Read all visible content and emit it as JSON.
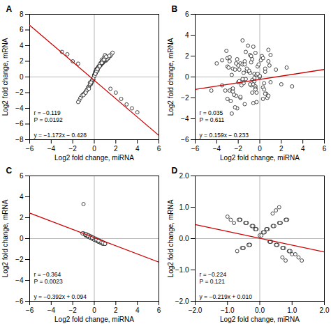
{
  "chart_data": [
    {
      "type": "scatter",
      "title": "A",
      "x_label": "Log2 fold change, miRNA",
      "y_label": "Log2 fold change, mRNA",
      "annotation": "r = −0.119\nP = 0.0192\n\ny = −1.172x − 0.428",
      "color": "black",
      "marker": "hollow",
      "xlim": [
        -6,
        6
      ],
      "ylim": [
        -8,
        8
      ],
      "xticks": [
        -6,
        -4,
        -2,
        0,
        2,
        4,
        6
      ],
      "yticks": [
        -8,
        -6,
        -4,
        -2,
        0,
        2,
        4,
        6,
        8
      ],
      "rules": {
        "x": [
          0
        ],
        "y": [
          0
        ]
      },
      "line": {
        "x": [
          -6,
          6
        ],
        "y": [
          6.604,
          -7.46
        ],
        "color": "#cc0000"
      },
      "x": [
        0.1,
        0.3,
        -0.1,
        0.2,
        0.0,
        0.4,
        -0.2,
        0.5,
        0.1,
        -0.3,
        0.6,
        0.8,
        -0.4,
        0.7,
        0.2,
        -0.5,
        0.9,
        1.0,
        -0.6,
        0.3,
        0.0,
        0.1,
        -0.2,
        0.4,
        0.6,
        -0.7,
        0.8,
        1.1,
        -0.8,
        0.5,
        0.2,
        -0.1,
        0.3,
        0.7,
        -0.3,
        0.9,
        1.2,
        -0.9,
        0.4,
        0.0,
        0.1,
        0.2,
        -0.4,
        0.5,
        0.8,
        -1.0,
        1.0,
        1.3,
        -1.1,
        0.6,
        -0.5,
        0.3,
        -0.2,
        0.7,
        0.9,
        -0.6,
        1.1,
        1.4,
        -1.2,
        0.4,
        0.0,
        0.1,
        0.3,
        -0.3,
        0.6,
        0.8,
        -0.8,
        1.2,
        1.5,
        -1.3,
        0.5,
        -0.7,
        0.2,
        0.4,
        0.7,
        0.9,
        -0.9,
        1.3,
        1.6,
        -1.4,
        0.6,
        0.1,
        -0.1,
        0.3,
        0.5,
        0.8,
        -1.0,
        1.4,
        1.7,
        -1.5,
        2.0,
        3.0,
        4.0,
        -2.0,
        -3.0,
        1.5,
        2.5,
        -1.5,
        -2.5,
        3.5,
        0.0,
        0.2,
        -0.2,
        0.4,
        0.6,
        0.8,
        -0.4,
        1.0,
        -0.6,
        0.5,
        0.1,
        -0.1,
        0.3,
        0.7,
        -0.3,
        0.9,
        1.1,
        -0.8,
        0.5,
        -0.5
      ],
      "values": [
        0.5,
        0.8,
        -0.3,
        1.0,
        0.2,
        1.2,
        -0.5,
        1.5,
        0.7,
        -0.8,
        1.8,
        2.0,
        -1.0,
        2.2,
        0.9,
        -1.2,
        2.5,
        2.8,
        -1.5,
        1.1,
        0.3,
        0.6,
        -0.6,
        1.3,
        1.6,
        -1.7,
        1.9,
        2.1,
        -1.9,
        1.4,
        0.7,
        -0.4,
        1.0,
        1.7,
        -0.9,
        2.0,
        2.3,
        -2.1,
        1.2,
        0.1,
        0.4,
        0.7,
        -0.7,
        1.4,
        1.8,
        -2.2,
        2.1,
        2.4,
        -2.3,
        1.5,
        -1.3,
        1.1,
        -0.5,
        1.7,
        2.0,
        -1.4,
        2.2,
        2.6,
        -2.5,
        1.3,
        0.2,
        0.5,
        1.0,
        -0.8,
        1.6,
        1.9,
        -1.9,
        2.3,
        2.7,
        -2.7,
        1.5,
        -1.7,
        0.9,
        1.3,
        1.8,
        2.1,
        -2.1,
        2.5,
        2.9,
        -3.0,
        1.6,
        0.4,
        -0.3,
        1.1,
        1.5,
        2.0,
        -2.3,
        2.7,
        3.1,
        -3.2,
        -2.0,
        -3.5,
        -4.5,
        2.0,
        3.2,
        -1.5,
        -2.8,
        1.7,
        2.9,
        -4.0,
        0.1,
        0.7,
        -0.4,
        1.2,
        1.7,
        2.1,
        -0.9,
        2.4,
        -1.4,
        1.6,
        0.4,
        -0.2,
        1.0,
        1.8,
        -0.7,
        2.2,
        2.6,
        -2.0,
        1.4,
        -1.5
      ]
    },
    {
      "type": "scatter",
      "title": "B",
      "x_label": "Log2 fold change, miRNA",
      "y_label": "Log2 fold change, mRNA",
      "annotation": "r = 0.035\nP = 0.611\n\ny = 0.159x − 0.233",
      "color": "black",
      "marker": "hollow",
      "xlim": [
        -6,
        6
      ],
      "ylim": [
        -6,
        6
      ],
      "xticks": [
        -6,
        -4,
        -2,
        0,
        2,
        4,
        6
      ],
      "yticks": [
        -6,
        -4,
        -2,
        0,
        2,
        4,
        6
      ],
      "rules": {
        "x": [
          0
        ],
        "y": [
          0
        ]
      },
      "line": {
        "x": [
          -6,
          6
        ],
        "y": [
          -1.187,
          0.721
        ],
        "color": "#cc0000"
      },
      "x": [
        -1.0,
        -2.0,
        -3.0,
        -0.5,
        -1.5,
        -2.5,
        -0.8,
        -1.8,
        -2.8,
        -0.3,
        -1.3,
        -2.3,
        -0.6,
        -1.6,
        -2.6,
        -0.9,
        -1.9,
        -2.9,
        -0.4,
        -1.4,
        0.0,
        0.5,
        1.0,
        -0.2,
        0.3,
        0.8,
        -0.7,
        0.2,
        0.7,
        -1.2,
        0.4,
        0.9,
        -0.4,
        0.1,
        0.6,
        -0.9,
        0.3,
        0.8,
        -1.4,
        0.5,
        -3.5,
        -4.0,
        -4.5,
        -3.0,
        -2.2,
        1.5,
        2.0,
        -0.1,
        0.4,
        -2.1,
        -1.1,
        -2.1,
        -3.1,
        -0.6,
        -1.6,
        -2.6,
        -0.8,
        -1.8,
        -2.8,
        -0.3,
        0.0,
        -0.5,
        -1.0,
        -1.5,
        -2.0,
        -2.5,
        -3.5,
        0.5,
        1.0,
        -3.0,
        -0.2,
        -0.7,
        -1.2,
        -1.7,
        -2.2,
        -3.2,
        0.3,
        0.8,
        -0.4,
        -2.7,
        2.5,
        3.0,
        -0.5,
        -1.5,
        -2.5,
        -0.8,
        -1.8,
        -2.8,
        -0.3,
        -1.3,
        -2.3,
        -0.6,
        -1.6,
        -2.6,
        -0.9,
        -1.9,
        -0.4,
        -1.4,
        -2.4,
        -0.7
      ],
      "values": [
        0.5,
        -0.5,
        1.0,
        0.3,
        -0.3,
        0.8,
        -0.8,
        1.3,
        -1.3,
        0.2,
        -0.2,
        0.7,
        -0.7,
        1.2,
        -1.2,
        0.4,
        -0.4,
        0.9,
        -0.9,
        1.5,
        0.0,
        0.5,
        -0.5,
        1.0,
        -1.0,
        1.5,
        -1.5,
        2.0,
        -2.0,
        0.6,
        -0.6,
        1.1,
        -1.1,
        1.6,
        -1.6,
        2.1,
        -2.1,
        2.6,
        -2.6,
        0.8,
        -0.8,
        1.3,
        -1.3,
        1.8,
        -1.8,
        0.7,
        -0.7,
        1.2,
        -1.2,
        1.7,
        3.0,
        -3.0,
        2.5,
        -2.5,
        3.5,
        -3.5,
        2.0,
        -2.0,
        1.5,
        -1.5,
        0.1,
        -0.1,
        0.6,
        -0.6,
        1.1,
        -1.1,
        1.6,
        -1.6,
        2.1,
        -2.1,
        0.3,
        -0.3,
        0.8,
        -0.8,
        1.3,
        -1.3,
        1.8,
        -1.8,
        2.3,
        -2.3,
        0.9,
        -0.9,
        -0.4,
        0.4,
        -1.4,
        1.4,
        -1.9,
        1.9,
        -2.4,
        2.4,
        -2.9,
        2.9,
        -0.2,
        0.2,
        -0.7,
        0.7,
        -1.2,
        1.2,
        -1.7,
        1.7
      ]
    },
    {
      "type": "scatter",
      "title": "C",
      "x_label": "Log2 fold change, miRNA",
      "y_label": "Log2 fold change, mRNA",
      "annotation": "r = −0.364\nP = 0.0023\n\ny = −0.392x + 0.094",
      "color": "black",
      "marker": "hollow",
      "xlim": [
        -6,
        6
      ],
      "ylim": [
        -6,
        6
      ],
      "xticks": [
        -6,
        -4,
        -2,
        0,
        2,
        4,
        6
      ],
      "yticks": [
        -6,
        -4,
        -2,
        0,
        2,
        4,
        6
      ],
      "rules": {
        "x": [
          0
        ],
        "y": [
          0
        ]
      },
      "line": {
        "x": [
          -6,
          6
        ],
        "y": [
          2.446,
          -2.258
        ],
        "color": "#cc0000"
      },
      "x": [
        -1.0,
        -0.8,
        -0.6,
        -0.4,
        -0.2,
        0.0,
        0.2,
        0.4,
        0.6,
        0.8,
        1.0,
        -0.9,
        -0.7,
        -0.5,
        -0.3,
        -0.1,
        0.1,
        0.3,
        0.5,
        0.7,
        0.9,
        -1.1,
        -0.8,
        -0.6,
        -0.4,
        -0.2,
        0.0,
        0.2,
        0.4,
        0.6,
        0.8,
        1.0,
        0.3,
        0.5,
        -0.3,
        -0.5,
        0.7,
        -0.7,
        0.1,
        -0.1,
        -1.0,
        0.6,
        -0.4,
        0.2,
        -0.2,
        0.4,
        -0.6,
        0.8,
        -0.8,
        1.0
      ],
      "values": [
        0.5,
        0.3,
        0.2,
        0.1,
        0.0,
        -0.1,
        -0.2,
        -0.3,
        -0.4,
        -0.5,
        -0.5,
        0.4,
        0.3,
        0.2,
        0.1,
        0.0,
        -0.1,
        -0.2,
        -0.3,
        -0.4,
        -0.4,
        0.5,
        0.4,
        0.2,
        0.1,
        0.0,
        -0.1,
        -0.2,
        -0.3,
        -0.4,
        -0.5,
        -0.5,
        -0.1,
        -0.2,
        0.2,
        0.3,
        -0.3,
        0.4,
        0.0,
        0.1,
        3.3,
        -0.3,
        0.2,
        -0.1,
        0.1,
        -0.2,
        0.3,
        -0.4,
        0.4,
        -0.5
      ]
    },
    {
      "type": "scatter",
      "title": "D",
      "x_label": "Log2 fold change, miRNA",
      "y_label": "Log2 fold change, mRNA",
      "annotation": "r = −0.224\nP = 0.121\n\ny = −0.219x + 0.010",
      "color": "black",
      "marker": "hollow",
      "xlim": [
        -2,
        2
      ],
      "ylim": [
        -2,
        2
      ],
      "xticks": [
        -2,
        -1,
        0,
        1,
        2
      ],
      "yticks": [
        -2,
        -1,
        0,
        1,
        2
      ],
      "rules": {
        "x": [
          0
        ],
        "y": [
          0
        ]
      },
      "line": {
        "x": [
          -2,
          2
        ],
        "y": [
          0.448,
          -0.428
        ],
        "color": "#cc0000"
      },
      "x": [
        0.0,
        0.1,
        0.2,
        0.3,
        0.4,
        0.5,
        0.6,
        0.7,
        0.8,
        0.9,
        1.0,
        -0.1,
        -0.2,
        -0.3,
        -0.4,
        -0.5,
        -0.6,
        -0.7,
        0.15,
        0.25,
        0.35,
        0.45,
        0.55,
        0.65,
        0.75,
        0.85,
        0.95,
        -0.15,
        -0.25,
        -0.35,
        -0.45,
        -0.55,
        -0.65,
        0.05,
        0.12,
        0.22,
        0.32,
        0.42,
        0.52,
        0.62,
        0.72,
        0.82,
        0.92,
        -0.12,
        -0.22,
        -0.32,
        -0.42,
        -0.52,
        -0.62,
        1.1,
        1.2,
        1.3,
        -0.8,
        -0.9,
        -1.0,
        0.4,
        0.5,
        0.6,
        0.7,
        0.8
      ],
      "values": [
        0.1,
        0.2,
        0.3,
        -0.1,
        0.4,
        -0.2,
        0.5,
        -0.3,
        0.6,
        -0.4,
        -0.5,
        0.3,
        0.4,
        -0.2,
        0.5,
        -0.3,
        0.6,
        -0.4,
        0.2,
        0.3,
        -0.1,
        0.4,
        -0.2,
        0.5,
        -0.3,
        0.6,
        -0.4,
        0.3,
        0.4,
        -0.2,
        0.5,
        -0.3,
        0.6,
        0.1,
        0.2,
        0.3,
        -0.1,
        0.4,
        -0.2,
        0.5,
        -0.3,
        0.6,
        -0.4,
        0.3,
        0.4,
        -0.2,
        0.5,
        -0.3,
        0.6,
        -0.5,
        -0.6,
        -0.7,
        0.5,
        0.6,
        0.7,
        0.8,
        0.9,
        1.0,
        -0.6,
        -0.7
      ]
    }
  ]
}
